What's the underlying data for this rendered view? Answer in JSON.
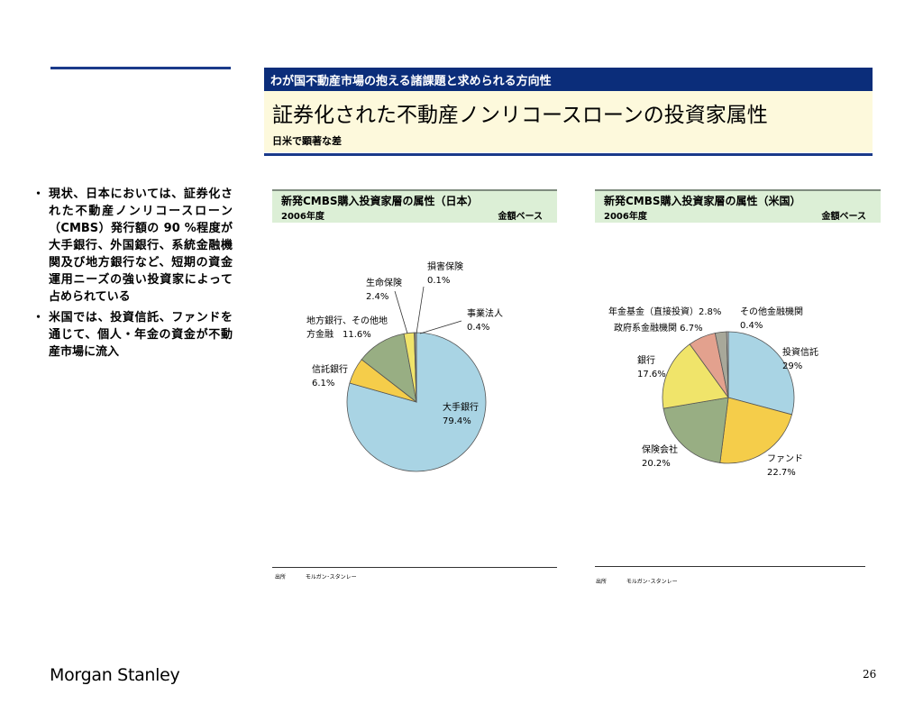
{
  "header": {
    "section": "わが国不動産市場の抱える諸課題と求められる方向性",
    "title": "証券化された不動産ノンリコースローンの投資家属性",
    "subtitle": "日米で顕著な差"
  },
  "bullets": [
    "現状、日本においては、証券化された不動産ノンリコースローン（CMBS）発行額の 90 %程度が大手銀行、外国銀行、系統金融機関及び地方銀行など、短期の資金運用ニーズの強い投資家によって占められている",
    "米国では、投資信託、ファンドを通じて、個人・年金の資金が不動産市場に流入"
  ],
  "panels": [
    {
      "title": "新発CMBS購入投資家層の属性（日本）",
      "year": "2006年度",
      "basis": "金額ベース",
      "source_label": "出所",
      "source": "モルガン･スタンレー"
    },
    {
      "title": "新発CMBS購入投資家層の属性（米国）",
      "year": "2006年度",
      "basis": "金額ベース",
      "source_label": "出所",
      "source": "モルガン･スタンレー"
    }
  ],
  "chart_data": [
    {
      "type": "pie",
      "title": "新発CMBS購入投資家層の属性（日本）",
      "slices": [
        {
          "label": "大手銀行",
          "value": 79.4,
          "text": "79.4%",
          "color": "#a9d4e4"
        },
        {
          "label": "信託銀行",
          "value": 6.1,
          "text": "6.1%",
          "color": "#f5cd4a"
        },
        {
          "label": "地方銀行、その他地方金融",
          "value": 11.6,
          "text": "11.6%",
          "color": "#98ae83"
        },
        {
          "label": "生命保険",
          "value": 2.4,
          "text": "2.4%",
          "color": "#f0e46a"
        },
        {
          "label": "損害保険",
          "value": 0.1,
          "text": "0.1%",
          "color": "#e3a18e"
        },
        {
          "label": "事業法人",
          "value": 0.4,
          "text": "0.4%",
          "color": "#a8a89a"
        }
      ]
    },
    {
      "type": "pie",
      "title": "新発CMBS購入投資家層の属性（米国）",
      "slices": [
        {
          "label": "投資信託",
          "value": 29,
          "text": "29%",
          "color": "#a9d4e4"
        },
        {
          "label": "ファンド",
          "value": 22.7,
          "text": "22.7%",
          "color": "#f5cd4a"
        },
        {
          "label": "保険会社",
          "value": 20.2,
          "text": "20.2%",
          "color": "#98ae83"
        },
        {
          "label": "銀行",
          "value": 17.6,
          "text": "17.6%",
          "color": "#f0e46a"
        },
        {
          "label": "政府系金融機関",
          "value": 6.7,
          "text": "6.7%",
          "color": "#e3a18e"
        },
        {
          "label": "年金基金（直接投資）",
          "value": 2.8,
          "text": "2.8%",
          "color": "#a8a89a"
        },
        {
          "label": "その他金融機関",
          "value": 0.4,
          "text": "0.4%",
          "color": "#c8c8c8"
        }
      ]
    }
  ],
  "jp_labels": {
    "big_banks": "大手銀行",
    "big_banks_pct": "79.4%",
    "trust_banks": "信託銀行",
    "trust_banks_pct": "6.1%",
    "regional_line1": "地方銀行、その他地",
    "regional_line2": "方金融　11.6%",
    "life": "生命保険",
    "life_pct": "2.4%",
    "nonlife": "損害保険",
    "nonlife_pct": "0.1%",
    "corporate": "事業法人",
    "corporate_pct": "0.4%"
  },
  "us_labels": {
    "funds": "投資信託",
    "funds_pct": "29%",
    "fund": "ファンド",
    "fund_pct": "22.7%",
    "insurance": "保険会社",
    "insurance_pct": "20.2%",
    "banks": "銀行",
    "banks_pct": "17.6%",
    "gov": "政府系金融機関 6.7%",
    "pension": "年金基金（直接投資）2.8%",
    "other": "その他金融機関",
    "other_pct": "0.4%"
  },
  "footer": {
    "logo": "Morgan Stanley",
    "page_number": "26"
  }
}
